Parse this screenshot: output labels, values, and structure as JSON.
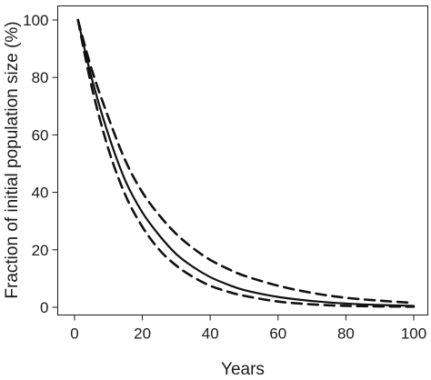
{
  "chart_data": {
    "type": "line",
    "xlabel": "Years",
    "ylabel": "Fraction of initial population size (%)",
    "xlim": [
      0,
      100
    ],
    "ylim": [
      0,
      100
    ],
    "x_ticks": [
      0,
      20,
      40,
      60,
      80,
      100
    ],
    "y_ticks": [
      0,
      20,
      40,
      60,
      80,
      100
    ],
    "grid": false,
    "x": [
      1,
      5,
      10,
      15,
      20,
      25,
      30,
      35,
      40,
      45,
      50,
      60,
      70,
      80,
      90,
      100
    ],
    "series": [
      {
        "style": "solid",
        "values": [
          100,
          80,
          60,
          44,
          33,
          25,
          18.5,
          14,
          10.5,
          8,
          6,
          3.6,
          2.2,
          1.3,
          0.8,
          0.5
        ]
      },
      {
        "style": "dashed",
        "values": [
          100,
          83,
          66,
          51,
          40,
          32,
          25.5,
          20.5,
          16.5,
          13.5,
          11,
          7.5,
          5,
          3.3,
          2.3,
          1.5
        ]
      },
      {
        "style": "dashed",
        "values": [
          100,
          77,
          55,
          39,
          28,
          20,
          14.5,
          10.5,
          7.5,
          5.5,
          4,
          2,
          1,
          0.5,
          0.3,
          0.2
        ]
      }
    ]
  }
}
